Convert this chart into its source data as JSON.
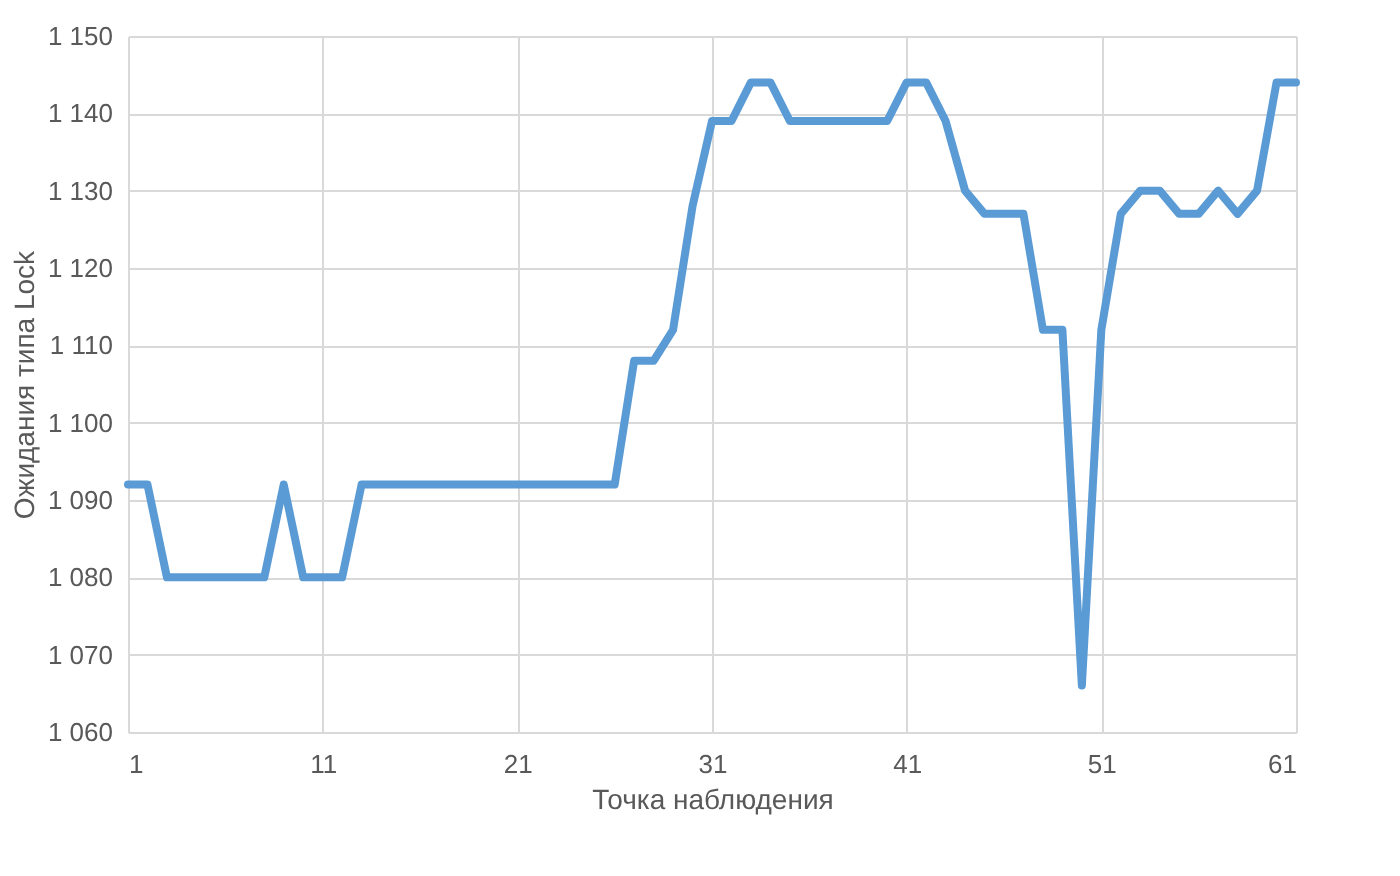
{
  "chart_data": {
    "type": "line",
    "xlabel": "Точка наблюдения",
    "ylabel": "Ожидания типа Lock",
    "x": [
      1,
      2,
      3,
      4,
      5,
      6,
      7,
      8,
      9,
      10,
      11,
      12,
      13,
      14,
      15,
      16,
      17,
      18,
      19,
      20,
      21,
      22,
      23,
      24,
      25,
      26,
      27,
      28,
      29,
      30,
      31,
      32,
      33,
      34,
      35,
      36,
      37,
      38,
      39,
      40,
      41,
      42,
      43,
      44,
      45,
      46,
      47,
      48,
      49,
      50,
      51,
      52,
      53,
      54,
      55,
      56,
      57,
      58,
      59,
      60,
      61
    ],
    "series": [
      {
        "color": "#5b9bd5",
        "values": [
          1092,
          1092,
          1080,
          1080,
          1080,
          1080,
          1080,
          1080,
          1092,
          1080,
          1080,
          1080,
          1092,
          1092,
          1092,
          1092,
          1092,
          1092,
          1092,
          1092,
          1092,
          1092,
          1092,
          1092,
          1092,
          1092,
          1108,
          1108,
          1112,
          1128,
          1139,
          1139,
          1144,
          1144,
          1139,
          1139,
          1139,
          1139,
          1139,
          1139,
          1144,
          1144,
          1139,
          1130,
          1127,
          1127,
          1127,
          1112,
          1112,
          1066,
          1112,
          1127,
          1130,
          1130,
          1127,
          1127,
          1130,
          1127,
          1130,
          1144,
          1144
        ]
      }
    ],
    "xlim": [
      1,
      61
    ],
    "xticks": [
      1,
      11,
      21,
      31,
      41,
      51,
      61
    ],
    "ylim": [
      1060,
      1150
    ],
    "yticks": [
      {
        "value": 1060,
        "label": "1 060"
      },
      {
        "value": 1070,
        "label": "1 070"
      },
      {
        "value": 1080,
        "label": "1 080"
      },
      {
        "value": 1090,
        "label": "1 090"
      },
      {
        "value": 1100,
        "label": "1 100"
      },
      {
        "value": 1110,
        "label": "1 110"
      },
      {
        "value": 1120,
        "label": "1 120"
      },
      {
        "value": 1130,
        "label": "1 130"
      },
      {
        "value": 1140,
        "label": "1 140"
      },
      {
        "value": 1150,
        "label": "1 150"
      }
    ],
    "grid": true,
    "marker": "none",
    "line_style": "solid"
  }
}
